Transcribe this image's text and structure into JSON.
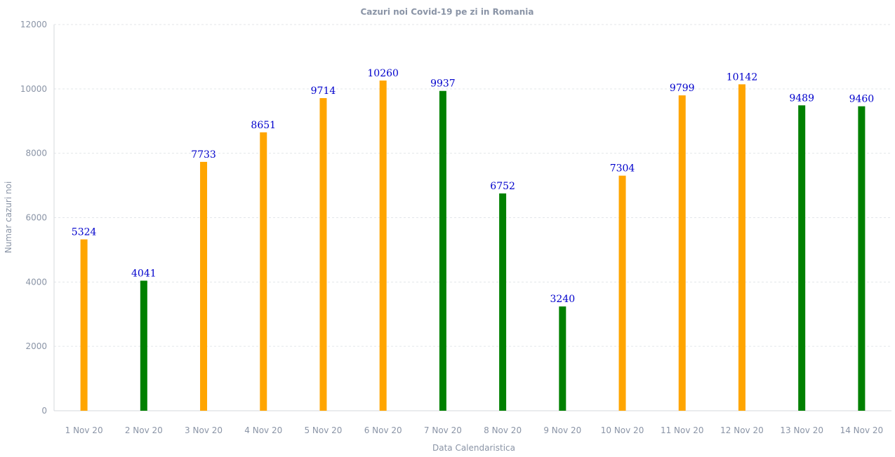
{
  "chart_data": {
    "type": "bar",
    "title": "Cazuri noi Covid-19 pe zi in Romania",
    "xlabel": "Data Calendaristica",
    "ylabel": "Numar cazuri noi",
    "ylim": [
      0,
      12000
    ],
    "yticks": [
      0,
      2000,
      4000,
      6000,
      8000,
      10000,
      12000
    ],
    "grid": true,
    "categories": [
      "1 Nov 20",
      "2 Nov 20",
      "3 Nov 20",
      "4 Nov 20",
      "5 Nov 20",
      "6 Nov 20",
      "7 Nov 20",
      "8 Nov 20",
      "9 Nov 20",
      "10 Nov 20",
      "11 Nov 20",
      "12 Nov 20",
      "13 Nov 20",
      "14 Nov 20"
    ],
    "values": [
      5324,
      4041,
      7733,
      8651,
      9714,
      10260,
      9937,
      6752,
      3240,
      7304,
      9799,
      10142,
      9489,
      9460
    ],
    "bar_colors": [
      "#ffa500",
      "#008000",
      "#ffa500",
      "#ffa500",
      "#ffa500",
      "#ffa500",
      "#008000",
      "#008000",
      "#008000",
      "#ffa500",
      "#ffa500",
      "#ffa500",
      "#008000",
      "#008000"
    ],
    "label_color": "#0000cc"
  }
}
